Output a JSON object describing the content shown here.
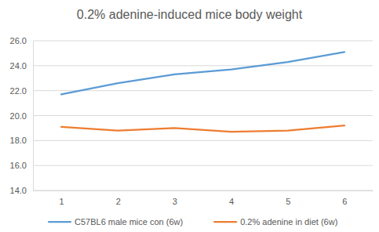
{
  "chart_data": {
    "type": "line",
    "title": "0.2% adenine-induced mice body weight",
    "categories": [
      "1",
      "2",
      "3",
      "4",
      "5",
      "6"
    ],
    "series": [
      {
        "name": "C57BL6 male mice con (6w)",
        "color": "#5b9bd5",
        "values": [
          21.7,
          22.6,
          23.3,
          23.7,
          24.3,
          25.1
        ]
      },
      {
        "name": "0.2% adenine in diet (6w)",
        "color": "#ed7d31",
        "values": [
          19.1,
          18.8,
          19.0,
          18.7,
          18.8,
          19.2
        ]
      }
    ],
    "ylim": [
      14,
      26
    ],
    "yticks": [
      {
        "value": 14,
        "label": "14.0"
      },
      {
        "value": 16,
        "label": "16.0"
      },
      {
        "value": 18,
        "label": "18.0"
      },
      {
        "value": 20,
        "label": "20.0"
      },
      {
        "value": 22,
        "label": "22.0"
      },
      {
        "value": 24,
        "label": "24.0"
      },
      {
        "value": 26,
        "label": "26.0"
      }
    ],
    "grid": true,
    "legend": "bottom"
  }
}
